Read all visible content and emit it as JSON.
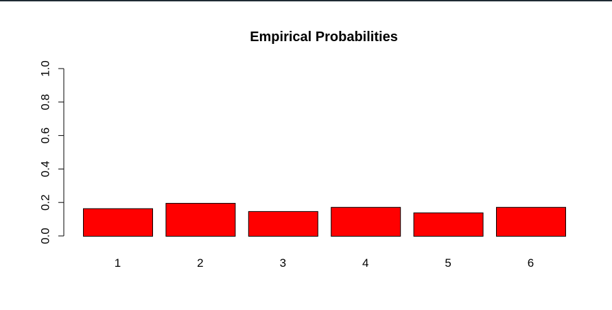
{
  "chart_data": {
    "type": "bar",
    "title": "Empirical Probabilities",
    "xlabel": "",
    "ylabel": "",
    "categories": [
      "1",
      "2",
      "3",
      "4",
      "5",
      "6"
    ],
    "values": [
      0.165,
      0.197,
      0.148,
      0.173,
      0.14,
      0.173
    ],
    "ylim": [
      0,
      1
    ],
    "yticks": [
      "0.0",
      "0.2",
      "0.4",
      "0.6",
      "0.8",
      "1.0"
    ],
    "bar_color": "#ff0000",
    "bar_border_color": "#000000",
    "grid": false,
    "legend": "none"
  }
}
